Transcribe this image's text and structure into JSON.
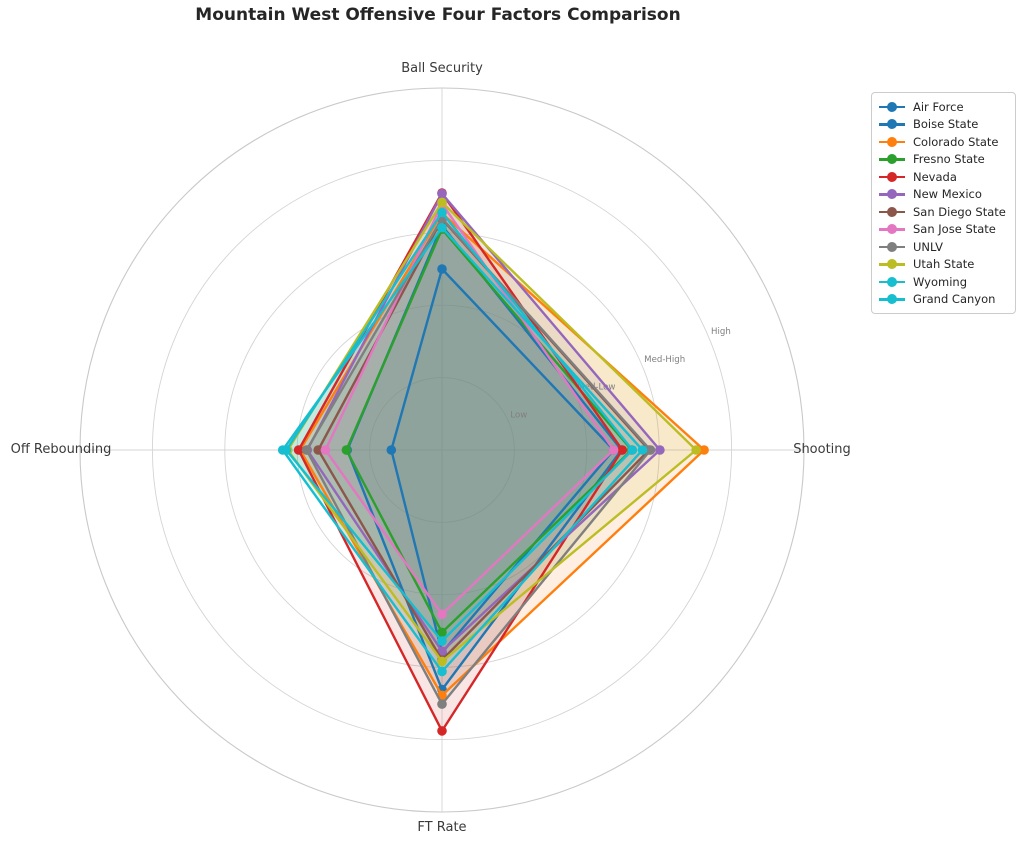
{
  "title": "Mountain West Offensive Four Factors Comparison",
  "chart_data": {
    "type": "radar",
    "title": "Mountain West Offensive Four Factors Comparison",
    "categories": [
      "Ball Security",
      "Shooting",
      "FT Rate",
      "Off Rebounding"
    ],
    "category_angles_deg": [
      90,
      0,
      270,
      180
    ],
    "radial_scale": {
      "min": 0,
      "max": 5,
      "tick_values": [
        1,
        2,
        3,
        4
      ],
      "tick_labels": [
        "Low",
        "Med-Low",
        "Med-High",
        "High"
      ],
      "tick_label_angle_deg": 22.5
    },
    "grid": true,
    "legend_position": "upper right",
    "series": [
      {
        "name": "Air Force",
        "color": "#1f77b4",
        "values": [
          2.5,
          2.37,
          2.8,
          0.7
        ]
      },
      {
        "name": "Boise State",
        "color": "#1f77b4",
        "values": [
          3.1,
          2.48,
          3.31,
          1.31
        ]
      },
      {
        "name": "Colorado State",
        "color": "#ff7f0e",
        "values": [
          3.27,
          3.62,
          3.39,
          1.96
        ]
      },
      {
        "name": "Fresno State",
        "color": "#2ca02c",
        "values": [
          3.05,
          2.62,
          2.52,
          1.32
        ]
      },
      {
        "name": "Nevada",
        "color": "#d62728",
        "values": [
          3.55,
          2.49,
          3.88,
          1.98
        ]
      },
      {
        "name": "New Mexico",
        "color": "#9467bd",
        "values": [
          3.54,
          3.01,
          2.78,
          1.86
        ]
      },
      {
        "name": "San Diego State",
        "color": "#8c564b",
        "values": [
          3.19,
          2.86,
          2.9,
          1.71
        ]
      },
      {
        "name": "San Jose State",
        "color": "#e377c2",
        "values": [
          3.4,
          2.37,
          2.27,
          1.61
        ]
      },
      {
        "name": "UNLV",
        "color": "#7f7f7f",
        "values": [
          3.2,
          2.88,
          3.51,
          1.87
        ]
      },
      {
        "name": "Utah State",
        "color": "#bcbd22",
        "values": [
          3.42,
          3.51,
          2.92,
          2.13
        ]
      },
      {
        "name": "Wyoming",
        "color": "#17becf",
        "values": [
          3.28,
          2.63,
          2.64,
          2.15
        ]
      },
      {
        "name": "Grand Canyon",
        "color": "#17becf",
        "values": [
          3.07,
          2.77,
          3.06,
          2.2
        ]
      }
    ],
    "style": {
      "fill_opacity": 0.12,
      "line_width": 2.4,
      "marker_radius": 4.8,
      "grid_color": "#d4d4d4",
      "spine_color": "#c9c9c9",
      "tick_label_color": "#7f7f7f",
      "axis_label_color": "#3a3a3a",
      "background": "#ffffff"
    }
  }
}
